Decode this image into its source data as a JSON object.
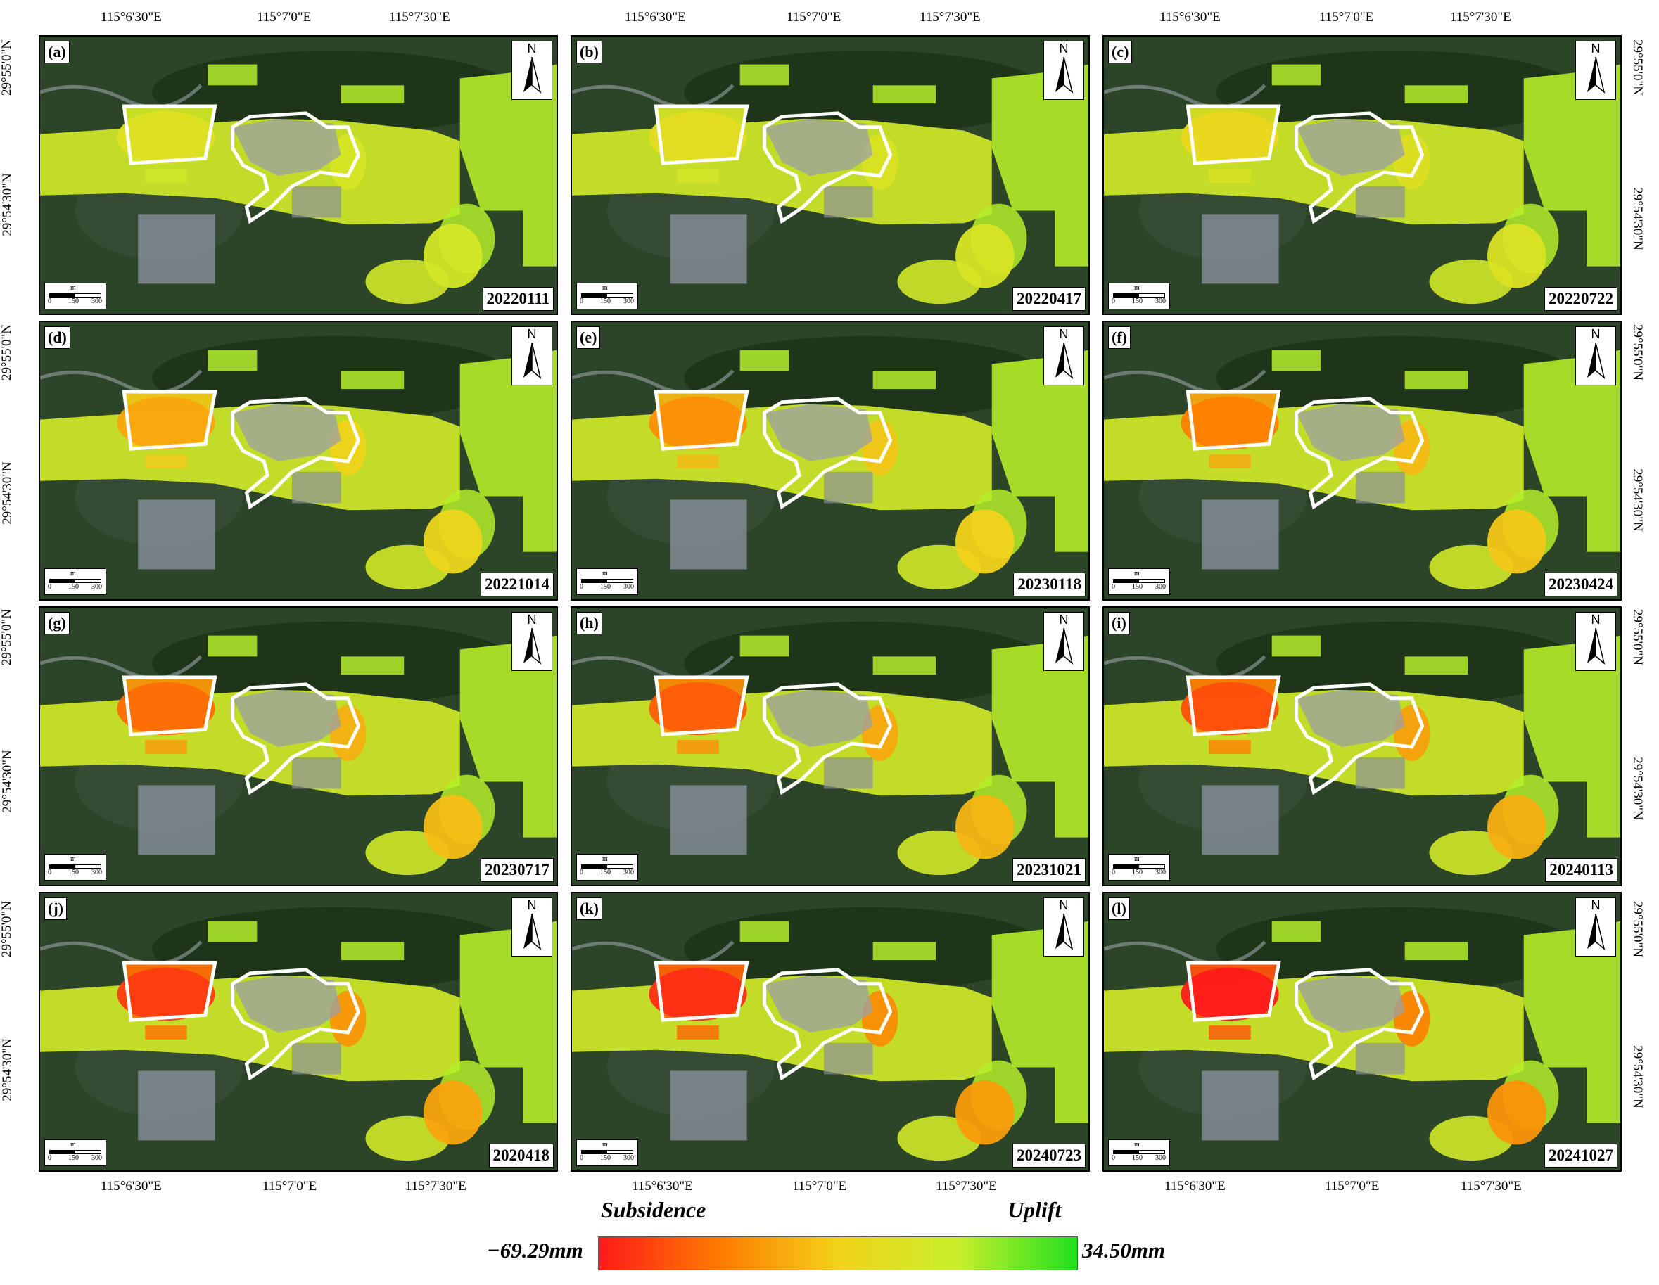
{
  "top_lon_labels": [
    "115°6'30\"E",
    "115°7'0\"E",
    "115°7'30\"E"
  ],
  "bottom_lon_labels": [
    "115°6'30\"E",
    "115°7'0\"E",
    "115°7'30\"E"
  ],
  "left_lat_labels": [
    "29°55'0\"N",
    "29°54'30\"N"
  ],
  "right_lat_labels": [
    "29°55'0\"N",
    "29°54'30\"N"
  ],
  "north_label": "N",
  "scale": {
    "unit": "m",
    "ticks": [
      "0",
      "150",
      "300"
    ]
  },
  "panels": [
    {
      "label": "(a)",
      "date": "20220111",
      "subsidence": 0.0
    },
    {
      "label": "(b)",
      "date": "20220417",
      "subsidence": 0.05
    },
    {
      "label": "(c)",
      "date": "20220722",
      "subsidence": 0.12
    },
    {
      "label": "(d)",
      "date": "20221014",
      "subsidence": 0.4
    },
    {
      "label": "(e)",
      "date": "20230118",
      "subsidence": 0.5
    },
    {
      "label": "(f)",
      "date": "20230424",
      "subsidence": 0.58
    },
    {
      "label": "(g)",
      "date": "20230717",
      "subsidence": 0.66
    },
    {
      "label": "(h)",
      "date": "20231021",
      "subsidence": 0.72
    },
    {
      "label": "(i)",
      "date": "20240113",
      "subsidence": 0.78
    },
    {
      "label": "(j)",
      "date": "2020418",
      "subsidence": 0.86
    },
    {
      "label": "(k)",
      "date": "20240723",
      "subsidence": 0.92
    },
    {
      "label": "(l)",
      "date": "20241027",
      "subsidence": 1.0
    }
  ],
  "legend": {
    "left_title": "Subsidence",
    "right_title": "Uplift",
    "min_label": "−69.29mm",
    "max_label": "34.50mm",
    "colors": [
      "#ff1a1a",
      "#ff7a00",
      "#f2d21a",
      "#c8ef2a",
      "#22e01e"
    ]
  }
}
